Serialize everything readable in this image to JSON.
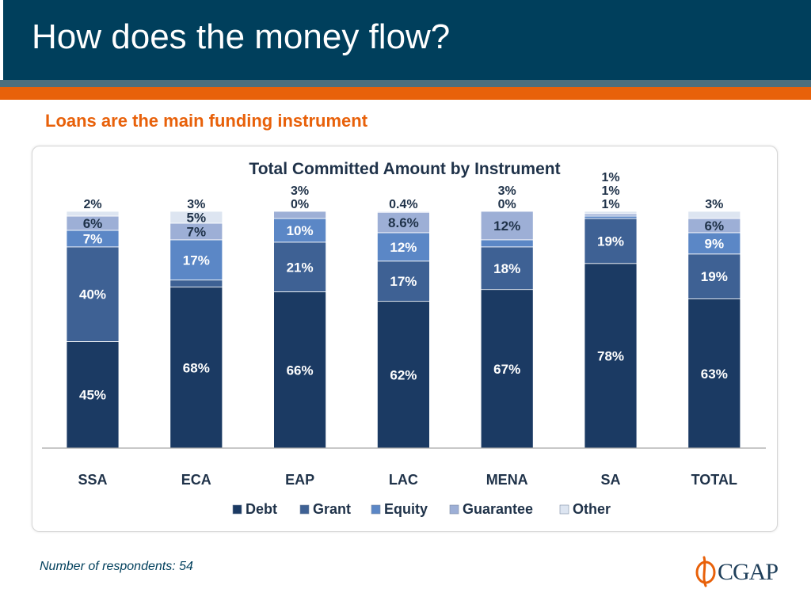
{
  "slide": {
    "title": "How does the money flow?",
    "subtitle": "Loans are the main funding instrument",
    "footnote": "Number of respondents: 54"
  },
  "logo": {
    "text": "CGAP",
    "icon": "cgap-logo-mark-icon"
  },
  "colors": {
    "header": "#003f5c",
    "accent_orange": "#e8610a",
    "debt": "#1b3a63",
    "grant": "#3e6194",
    "equity": "#5b87c6",
    "guarantee": "#9dafd6",
    "other": "#dde5f1"
  },
  "chart_data": {
    "type": "bar",
    "stacked": true,
    "title": "Total Committed Amount by Instrument",
    "categories": [
      "SSA",
      "ECA",
      "EAP",
      "LAC",
      "MENA",
      "SA",
      "TOTAL"
    ],
    "series": [
      {
        "name": "Debt",
        "values": [
          45,
          68,
          66,
          62,
          67,
          78,
          63
        ]
      },
      {
        "name": "Grant",
        "values": [
          40,
          3,
          21,
          17,
          18,
          19,
          19
        ]
      },
      {
        "name": "Equity",
        "values": [
          7,
          17,
          10,
          12,
          3,
          1,
          9
        ]
      },
      {
        "name": "Guarantee",
        "values": [
          6,
          7,
          3,
          8.6,
          12,
          1,
          6
        ]
      },
      {
        "name": "Other",
        "values": [
          2,
          5,
          0,
          0.4,
          0,
          1,
          3
        ]
      }
    ],
    "labels": [
      [
        "45%",
        "68%",
        "66%",
        "62%",
        "67%",
        "78%",
        "63%"
      ],
      [
        "40%",
        "3%",
        "21%",
        "17%",
        "18%",
        "19%",
        "19%"
      ],
      [
        "7%",
        "17%",
        "10%",
        "12%",
        "3%",
        "1%",
        "9%"
      ],
      [
        "6%",
        "7%",
        "3%",
        "8.6%",
        "12%",
        "1%",
        "6%"
      ],
      [
        "2%",
        "5%",
        "0%",
        "0.4%",
        "0%",
        "1%",
        "3%"
      ]
    ],
    "ylim": [
      0,
      100
    ],
    "xlabel": "",
    "ylabel": "",
    "grid": false,
    "legend_position": "bottom"
  }
}
